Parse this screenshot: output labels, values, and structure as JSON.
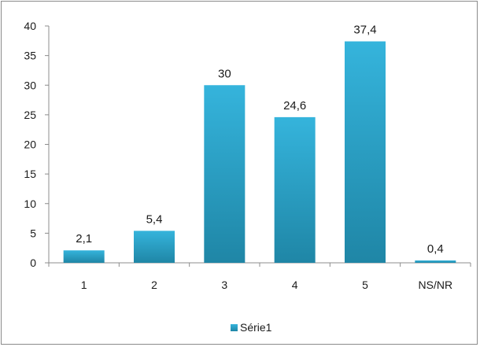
{
  "chart_data": {
    "type": "bar",
    "categories": [
      "1",
      "2",
      "3",
      "4",
      "5",
      "NS/NR"
    ],
    "series": [
      {
        "name": "Série1",
        "values": [
          2.1,
          5.4,
          30,
          24.6,
          37.4,
          0.4
        ]
      }
    ],
    "data_labels": [
      "2,1",
      "5,4",
      "30",
      "24,6",
      "37,4",
      "0,4"
    ],
    "y_ticks": [
      "0",
      "5",
      "10",
      "15",
      "20",
      "25",
      "30",
      "35",
      "40"
    ],
    "ylim": [
      0,
      40
    ],
    "title": "",
    "xlabel": "",
    "ylabel": "",
    "grid": false,
    "legend_position": "bottom",
    "colors": {
      "bar_top": "#35b4dc",
      "bar_bottom": "#1f86a6",
      "axis": "#8c8c8c"
    }
  }
}
